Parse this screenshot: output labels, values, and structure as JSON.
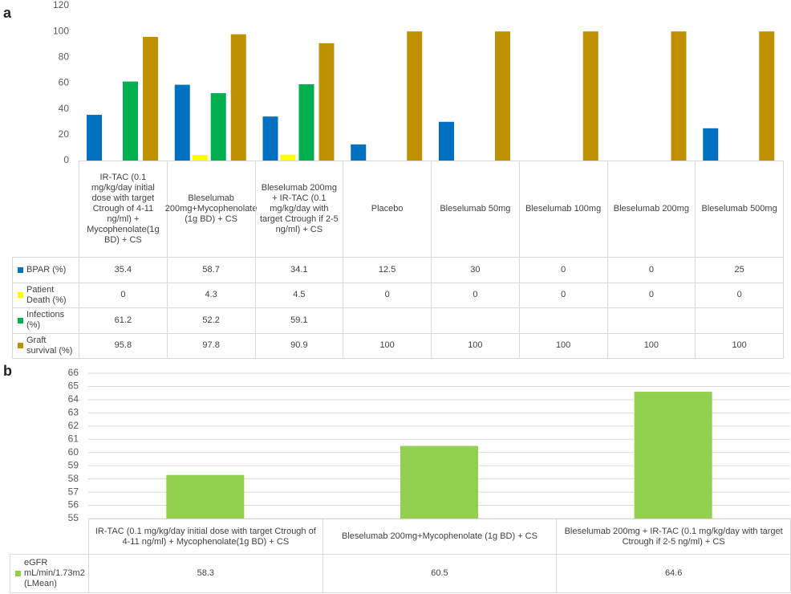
{
  "chart_data": [
    {
      "label": "a",
      "type": "bar",
      "categories": [
        "IR-TAC (0.1 mg/kg/day initial dose with target Ctrough of 4-11 ng/ml) + Mycophenolate(1g BD) + CS",
        "Bleselumab 200mg+Mycophenolate (1g BD) + CS",
        "Bleselumab 200mg + IR-TAC (0.1 mg/kg/day with target Ctrough if 2-5 ng/ml) + CS",
        "Placebo",
        "Bleselumab 50mg",
        "Bleselumab 100mg",
        "Bleselumab 200mg",
        "Bleselumab 500mg"
      ],
      "series": [
        {
          "name": "BPAR (%)",
          "color": "#0070c0",
          "values": [
            35.4,
            58.7,
            34.1,
            12.5,
            30,
            0,
            0,
            25
          ]
        },
        {
          "name": "Patient Death (%)",
          "color": "#ffff00",
          "values": [
            0,
            4.3,
            4.5,
            0,
            0,
            0,
            0,
            0
          ]
        },
        {
          "name": "Infections (%)",
          "color": "#00b050",
          "values": [
            61.2,
            52.2,
            59.1,
            null,
            null,
            null,
            null,
            null
          ]
        },
        {
          "name": "Graft survival (%)",
          "color": "#bf9000",
          "values": [
            95.8,
            97.8,
            90.9,
            100,
            100,
            100,
            100,
            100
          ]
        }
      ],
      "ylim": [
        0,
        120
      ],
      "yticks": [
        0,
        20,
        40,
        60,
        80,
        100,
        120
      ],
      "grid": false
    },
    {
      "label": "b",
      "type": "bar",
      "categories": [
        "IR-TAC (0.1 mg/kg/day initial dose with target Ctrough of 4-11 ng/ml) + Mycophenolate(1g BD) + CS",
        "Bleselumab 200mg+Mycophenolate (1g BD) + CS",
        "Bleselumab 200mg + IR-TAC (0.1 mg/kg/day with target Ctrough if 2-5 ng/ml) + CS"
      ],
      "series": [
        {
          "name": "eGFR mL/min/1.73m2 (LMean)",
          "color": "#92d050",
          "values": [
            58.3,
            60.5,
            64.6
          ]
        }
      ],
      "ylim": [
        55,
        66
      ],
      "yticks": [
        55,
        56,
        57,
        58,
        59,
        60,
        61,
        62,
        63,
        64,
        65,
        66
      ],
      "grid": true
    }
  ]
}
